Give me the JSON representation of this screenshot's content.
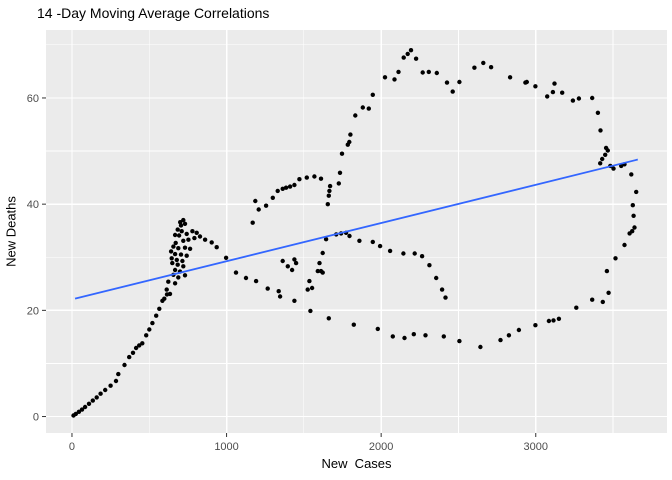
{
  "chart_data": {
    "type": "scatter",
    "title": "14 -Day Moving Average Correlations",
    "xlabel": "New  Cases",
    "ylabel": "New Deaths",
    "x_ticks": [
      0,
      1000,
      2000,
      3000
    ],
    "x_minor_ticks": [
      500,
      1500,
      2500,
      3500
    ],
    "y_ticks": [
      0,
      20,
      40,
      60
    ],
    "y_minor_ticks": [
      10,
      30,
      50,
      70
    ],
    "xlim": [
      -168,
      3849
    ],
    "ylim": [
      -3.1,
      72.8
    ],
    "grid": true,
    "legend": "none",
    "colors": {
      "panel_bg": "#EBEBEB",
      "grid_major": "#FFFFFF",
      "grid_minor": "#FFFFFF",
      "point": "#000000",
      "trend": "#3366FF",
      "tick_label": "#4D4D4D",
      "tick_mark": "#333333"
    },
    "trend_line": {
      "type": "linear",
      "x": [
        20,
        3660
      ],
      "y": [
        22.2,
        48.4
      ]
    },
    "points": [
      [
        10,
        0.2
      ],
      [
        25,
        0.5
      ],
      [
        45,
        0.9
      ],
      [
        65,
        1.3
      ],
      [
        85,
        1.8
      ],
      [
        110,
        2.4
      ],
      [
        135,
        3.0
      ],
      [
        160,
        3.6
      ],
      [
        185,
        4.3
      ],
      [
        215,
        5.0
      ],
      [
        250,
        5.8
      ],
      [
        285,
        6.7
      ],
      [
        300,
        8.0
      ],
      [
        340,
        9.7
      ],
      [
        370,
        11.2
      ],
      [
        395,
        12.0
      ],
      [
        415,
        12.9
      ],
      [
        435,
        13.4
      ],
      [
        455,
        13.8
      ],
      [
        480,
        15.3
      ],
      [
        500,
        16.4
      ],
      [
        520,
        17.6
      ],
      [
        545,
        19.0
      ],
      [
        565,
        20.3
      ],
      [
        585,
        21.8
      ],
      [
        615,
        23.0
      ],
      [
        597,
        22.2
      ],
      [
        613,
        23.9
      ],
      [
        634,
        23.1
      ],
      [
        623,
        25.4
      ],
      [
        656,
        26.7
      ],
      [
        667,
        25.1
      ],
      [
        688,
        26.2
      ],
      [
        731,
        26.6
      ],
      [
        667,
        27.6
      ],
      [
        699,
        27.3
      ],
      [
        649,
        28.9
      ],
      [
        684,
        28.6
      ],
      [
        720,
        28.3
      ],
      [
        645,
        29.8
      ],
      [
        678,
        29.5
      ],
      [
        714,
        29.3
      ],
      [
        641,
        31.1
      ],
      [
        667,
        30.6
      ],
      [
        705,
        30.5
      ],
      [
        742,
        30.3
      ],
      [
        656,
        32.0
      ],
      [
        688,
        31.7
      ],
      [
        731,
        31.8
      ],
      [
        764,
        31.6
      ],
      [
        671,
        32.7
      ],
      [
        720,
        33.1
      ],
      [
        753,
        33.3
      ],
      [
        792,
        33.6
      ],
      [
        828,
        33.9
      ],
      [
        807,
        34.6
      ],
      [
        779,
        34.9
      ],
      [
        742,
        34.4
      ],
      [
        710,
        34.9
      ],
      [
        693,
        34.1
      ],
      [
        667,
        34.2
      ],
      [
        684,
        35.2
      ],
      [
        705,
        36.0
      ],
      [
        731,
        36.3
      ],
      [
        720,
        37.0
      ],
      [
        700,
        36.6
      ],
      [
        861,
        33.3
      ],
      [
        904,
        32.8
      ],
      [
        936,
        31.9
      ],
      [
        997,
        29.9
      ],
      [
        1061,
        27.1
      ],
      [
        1126,
        26.1
      ],
      [
        1191,
        25.5
      ],
      [
        1266,
        24.1
      ],
      [
        1337,
        23.6
      ],
      [
        1346,
        22.6
      ],
      [
        1439,
        21.8
      ],
      [
        1542,
        19.9
      ],
      [
        1661,
        18.5
      ],
      [
        1823,
        17.3
      ],
      [
        1978,
        16.5
      ],
      [
        2075,
        15.1
      ],
      [
        2151,
        14.8
      ],
      [
        2211,
        15.5
      ],
      [
        2287,
        15.3
      ],
      [
        2405,
        15.1
      ],
      [
        2506,
        14.2
      ],
      [
        2642,
        13.1
      ],
      [
        2772,
        14.4
      ],
      [
        2826,
        15.3
      ],
      [
        2891,
        16.3
      ],
      [
        2998,
        17.2
      ],
      [
        3085,
        18.0
      ],
      [
        3115,
        18.1
      ],
      [
        3150,
        18.4
      ],
      [
        3262,
        20.5
      ],
      [
        3365,
        22.0
      ],
      [
        3434,
        21.6
      ],
      [
        3471,
        23.3
      ],
      [
        3460,
        27.4
      ],
      [
        3516,
        29.8
      ],
      [
        3574,
        32.3
      ],
      [
        3607,
        34.5
      ],
      [
        3624,
        34.9
      ],
      [
        3639,
        35.6
      ],
      [
        3633,
        37.8
      ],
      [
        3628,
        39.8
      ],
      [
        3650,
        42.3
      ],
      [
        3618,
        45.6
      ],
      [
        3574,
        47.5
      ],
      [
        3553,
        47.2
      ],
      [
        3503,
        46.7
      ],
      [
        3482,
        47.2
      ],
      [
        3417,
        47.7
      ],
      [
        3430,
        48.5
      ],
      [
        3449,
        49.3
      ],
      [
        3466,
        50.1
      ],
      [
        3455,
        50.6
      ],
      [
        3419,
        53.9
      ],
      [
        3402,
        57.2
      ],
      [
        3365,
        60.0
      ],
      [
        3279,
        59.9
      ],
      [
        3240,
        59.5
      ],
      [
        3171,
        61.0
      ],
      [
        3121,
        62.7
      ],
      [
        3111,
        61.1
      ],
      [
        3074,
        60.3
      ],
      [
        2998,
        62.2
      ],
      [
        2942,
        63.0
      ],
      [
        2933,
        62.9
      ],
      [
        2834,
        63.9
      ],
      [
        2711,
        65.8
      ],
      [
        2661,
        66.6
      ],
      [
        2603,
        65.7
      ],
      [
        2506,
        63.0
      ],
      [
        2463,
        61.2
      ],
      [
        2426,
        62.9
      ],
      [
        2360,
        64.7
      ],
      [
        2308,
        64.9
      ],
      [
        2269,
        64.8
      ],
      [
        2226,
        67.4
      ],
      [
        2193,
        69.0
      ],
      [
        2172,
        68.3
      ],
      [
        2146,
        67.6
      ],
      [
        2112,
        64.9
      ],
      [
        2086,
        63.5
      ],
      [
        2025,
        63.9
      ],
      [
        1946,
        60.6
      ],
      [
        1920,
        58.0
      ],
      [
        1881,
        58.2
      ],
      [
        1833,
        56.7
      ],
      [
        1801,
        53.1
      ],
      [
        1794,
        51.7
      ],
      [
        1784,
        51.2
      ],
      [
        1747,
        49.5
      ],
      [
        1734,
        45.9
      ],
      [
        1726,
        43.9
      ],
      [
        1670,
        43.4
      ],
      [
        1665,
        42.5
      ],
      [
        1661,
        41.6
      ],
      [
        1655,
        40.0
      ],
      [
        1611,
        44.8
      ],
      [
        1568,
        45.2
      ],
      [
        1519,
        45.0
      ],
      [
        1471,
        44.7
      ],
      [
        1439,
        43.6
      ],
      [
        1411,
        43.3
      ],
      [
        1385,
        43.1
      ],
      [
        1363,
        42.9
      ],
      [
        1331,
        42.5
      ],
      [
        1299,
        41.2
      ],
      [
        1256,
        39.7
      ],
      [
        1208,
        39.0
      ],
      [
        1186,
        40.6
      ],
      [
        1169,
        36.5
      ],
      [
        1363,
        29.3
      ],
      [
        1396,
        28.3
      ],
      [
        1424,
        27.6
      ],
      [
        1450,
        28.9
      ],
      [
        1439,
        29.6
      ],
      [
        1525,
        23.9
      ],
      [
        1536,
        25.5
      ],
      [
        1553,
        24.2
      ],
      [
        1590,
        27.4
      ],
      [
        1601,
        28.9
      ],
      [
        1611,
        27.4
      ],
      [
        1622,
        27.1
      ],
      [
        1622,
        30.8
      ],
      [
        1644,
        33.4
      ],
      [
        1709,
        34.3
      ],
      [
        1741,
        34.5
      ],
      [
        1773,
        34.6
      ],
      [
        1795,
        34.0
      ],
      [
        1859,
        33.1
      ],
      [
        1946,
        32.9
      ],
      [
        1993,
        32.1
      ],
      [
        2058,
        31.2
      ],
      [
        2144,
        30.7
      ],
      [
        2217,
        30.7
      ],
      [
        2265,
        30.2
      ],
      [
        2312,
        28.5
      ],
      [
        2356,
        26.1
      ],
      [
        2394,
        23.9
      ],
      [
        2416,
        22.4
      ]
    ]
  }
}
